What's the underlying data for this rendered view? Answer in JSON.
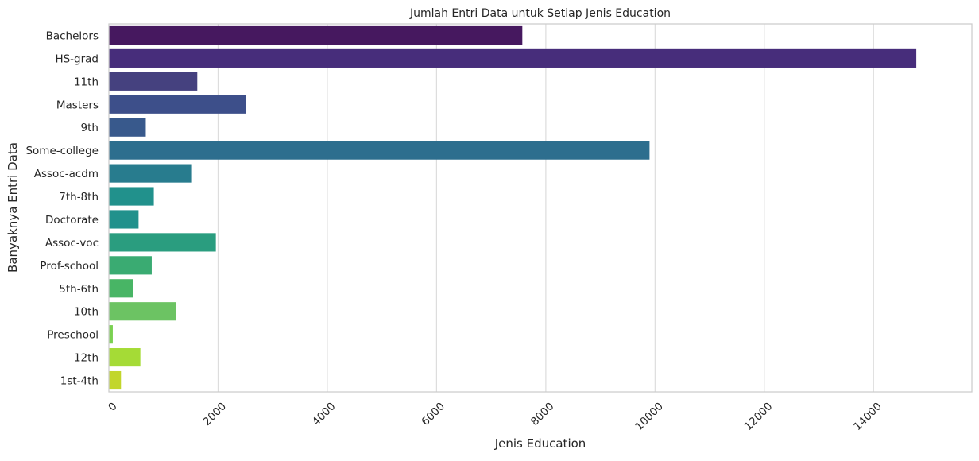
{
  "chart_data": {
    "type": "bar",
    "orientation": "horizontal",
    "title": "Jumlah Entri Data untuk Setiap Jenis Education",
    "xlabel": "Jenis Education",
    "ylabel": "Banyaknya Entri Data",
    "categories": [
      "Bachelors",
      "HS-grad",
      "11th",
      "Masters",
      "9th",
      "Some-college",
      "Assoc-acdm",
      "7th-8th",
      "Doctorate",
      "Assoc-voc",
      "Prof-school",
      "5th-6th",
      "10th",
      "Preschool",
      "12th",
      "1st-4th"
    ],
    "values": [
      7570,
      14783,
      1619,
      2514,
      676,
      9899,
      1507,
      823,
      544,
      1959,
      785,
      449,
      1223,
      72,
      577,
      222
    ],
    "xlim": [
      0,
      15800
    ],
    "xticks": [
      0,
      2000,
      4000,
      6000,
      8000,
      10000,
      12000,
      14000
    ],
    "xtick_labels": [
      "0",
      "2000",
      "4000",
      "6000",
      "8000",
      "10000",
      "12000",
      "14000"
    ],
    "colors": [
      "#46185f",
      "#472d7b",
      "#45417f",
      "#3d4f8a",
      "#38598c",
      "#2d6e8e",
      "#287c8e",
      "#21918c",
      "#21918c",
      "#2a9d7f",
      "#3aab72",
      "#48b565",
      "#6cc363",
      "#7ad151",
      "#a5db36",
      "#c2d62b"
    ],
    "grid": "vertical",
    "legend": "none"
  }
}
